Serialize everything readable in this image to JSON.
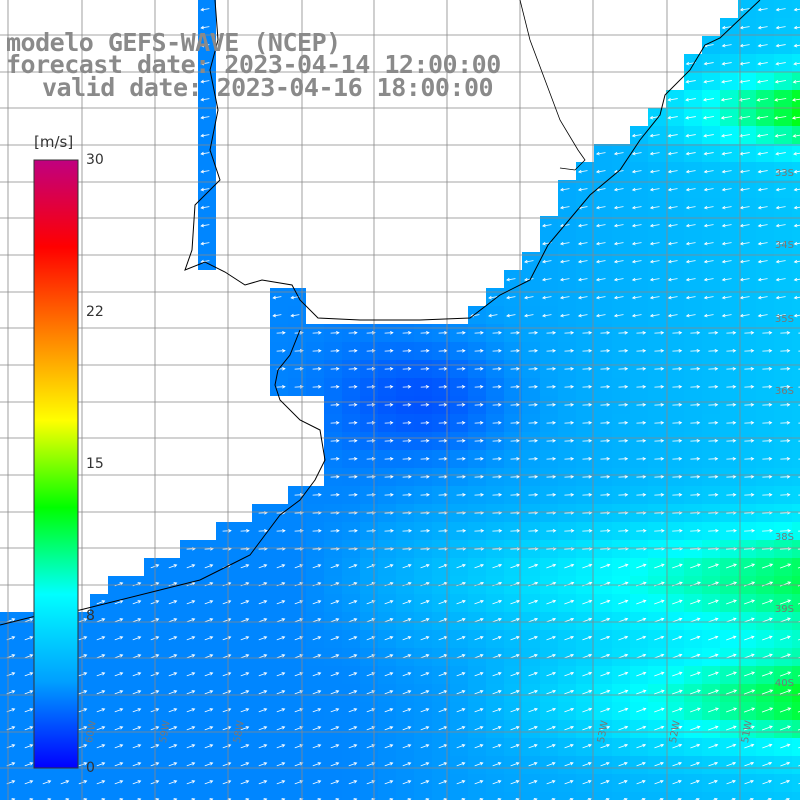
{
  "title": {
    "line1": "modelo GEFS-WAVE (NCEP)",
    "line2": "forecast date: 2023-04-14 12:00:00",
    "line3": "valid date: 2023-04-16 18:00:00"
  },
  "colorbar": {
    "unit": "[m/s]",
    "ticks": [
      "30",
      "22",
      "15",
      "8",
      "0"
    ],
    "stops": [
      "#0000ff",
      "#00a0ff",
      "#00ffff",
      "#00ff00",
      "#ffff00",
      "#ff8000",
      "#ff0000",
      "#c00080"
    ]
  },
  "lat_labels": [
    "33S",
    "34S",
    "35S",
    "36S",
    "38S",
    "39S",
    "40S"
  ],
  "lon_labels": [
    "60W",
    "59W",
    "58W",
    "53W",
    "52W",
    "51W"
  ],
  "colors": {
    "grid": "#888888",
    "coast": "#000000",
    "arrow": "#ffffff",
    "title": "#8a8a8a"
  }
}
